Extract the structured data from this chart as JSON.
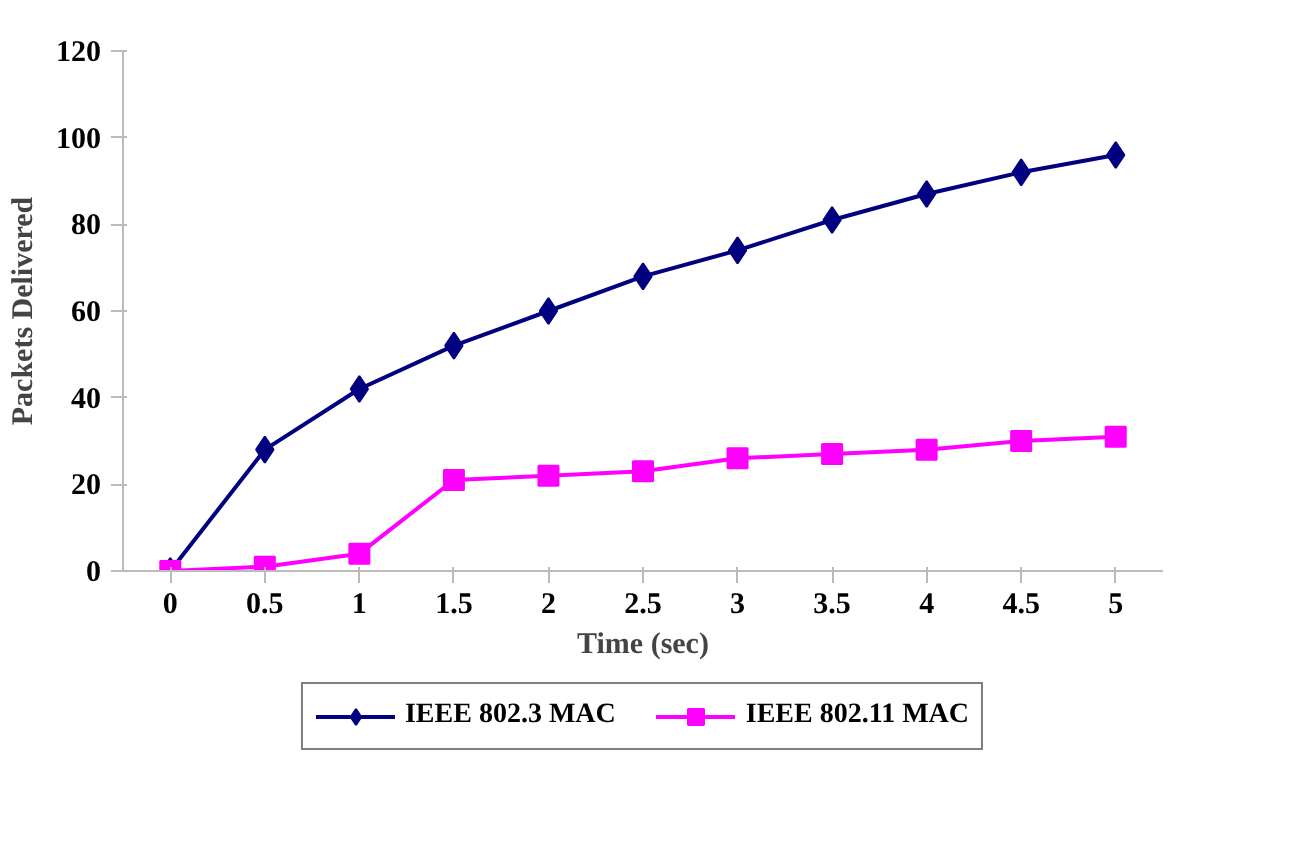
{
  "chart_data": {
    "type": "line",
    "xlabel": "Time (sec)",
    "ylabel": "Packets Delivered",
    "categories": [
      "0",
      "0.5",
      "1",
      "1.5",
      "2",
      "2.5",
      "3",
      "3.5",
      "4",
      "4.5",
      "5"
    ],
    "series": [
      {
        "name": "IEEE 802.3 MAC",
        "color": "#000080",
        "marker": "diamond",
        "values": [
          0,
          28,
          42,
          52,
          60,
          68,
          74,
          81,
          87,
          92,
          96
        ]
      },
      {
        "name": "IEEE 802.11 MAC",
        "color": "#ff00ff",
        "marker": "square",
        "values": [
          0,
          1,
          4,
          21,
          22,
          23,
          26,
          27,
          28,
          30,
          31
        ]
      }
    ],
    "ylim": [
      0,
      120
    ],
    "yticks": [
      0,
      20,
      40,
      60,
      80,
      100,
      120
    ],
    "grid": false,
    "legend": "bottom"
  }
}
